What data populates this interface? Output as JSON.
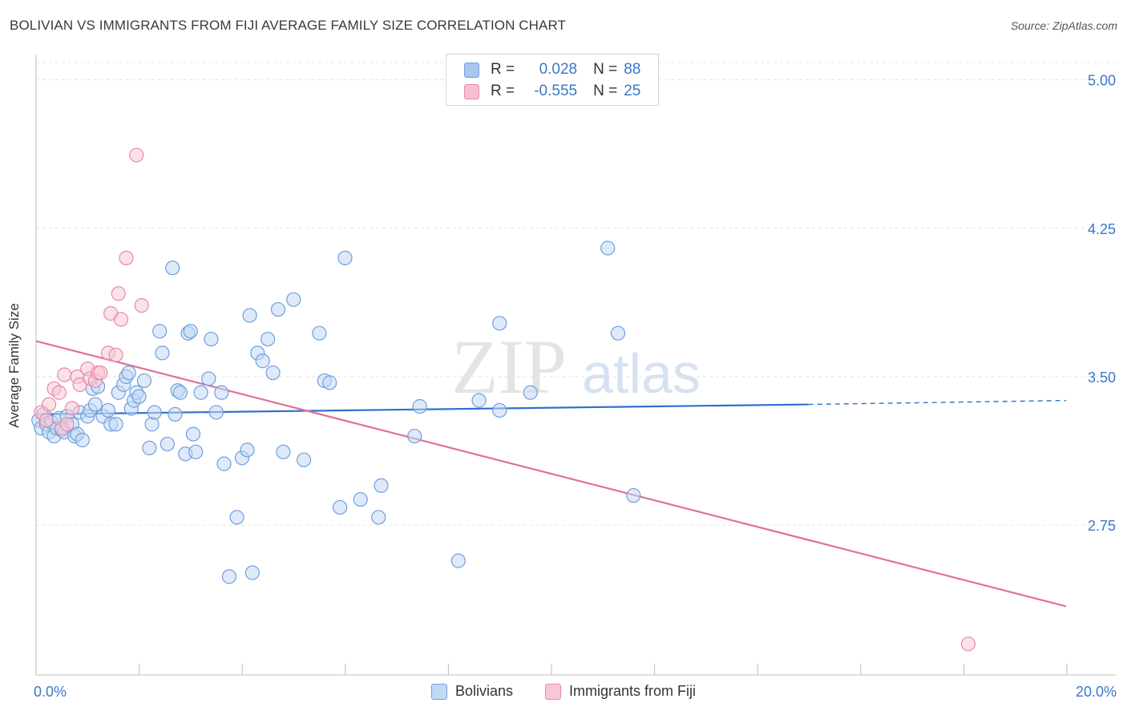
{
  "title": "BOLIVIAN VS IMMIGRANTS FROM FIJI AVERAGE FAMILY SIZE CORRELATION CHART",
  "source": "Source: ZipAtlas.com",
  "watermark": {
    "zip": "ZIP",
    "atlas": "atlas"
  },
  "legend_top": {
    "rows": [
      {
        "r_label": "R =",
        "r_value": "0.028",
        "n_label": "N =",
        "n_value": "88",
        "color": "#aac8ef",
        "border": "#6f9fdc"
      },
      {
        "r_label": "R =",
        "r_value": "-0.555",
        "n_label": "N =",
        "n_value": "25",
        "color": "#f6c0d0",
        "border": "#e88aa8"
      }
    ]
  },
  "chart_data": {
    "type": "scatter",
    "title": "BOLIVIAN VS IMMIGRANTS FROM FIJI AVERAGE FAMILY SIZE CORRELATION CHART",
    "xlabel": "",
    "ylabel": "Average Family Size",
    "xlim": [
      0,
      20
    ],
    "ylim": [
      2.05,
      5.12
    ],
    "x_tick_labels": [
      "0.0%",
      "20.0%"
    ],
    "y_ticks": [
      2.75,
      3.5,
      4.25,
      5.0
    ],
    "y_tick_labels": [
      "2.75",
      "3.50",
      "4.25",
      "5.00"
    ],
    "grid": true,
    "legend_position": "bottom",
    "series": [
      {
        "name": "Bolivians",
        "color": "#6f9fdc",
        "fill": "#c3d8f4",
        "trend": {
          "x0": 0.0,
          "y0": 3.31,
          "x1": 15.0,
          "y1": 3.36,
          "dash_to": 20.0,
          "dash_y": 3.38
        },
        "points": [
          [
            0.05,
            3.28
          ],
          [
            0.1,
            3.24
          ],
          [
            0.15,
            3.31
          ],
          [
            0.2,
            3.26
          ],
          [
            0.25,
            3.22
          ],
          [
            0.3,
            3.27
          ],
          [
            0.35,
            3.2
          ],
          [
            0.4,
            3.24
          ],
          [
            0.45,
            3.29
          ],
          [
            0.5,
            3.23
          ],
          [
            0.55,
            3.22
          ],
          [
            0.6,
            3.3
          ],
          [
            0.7,
            3.26
          ],
          [
            0.75,
            3.2
          ],
          [
            0.8,
            3.21
          ],
          [
            0.85,
            3.32
          ],
          [
            0.9,
            3.18
          ],
          [
            1.0,
            3.3
          ],
          [
            1.05,
            3.33
          ],
          [
            1.1,
            3.44
          ],
          [
            1.15,
            3.36
          ],
          [
            1.2,
            3.45
          ],
          [
            1.3,
            3.3
          ],
          [
            1.4,
            3.33
          ],
          [
            1.45,
            3.26
          ],
          [
            1.55,
            3.26
          ],
          [
            1.6,
            3.42
          ],
          [
            1.7,
            3.46
          ],
          [
            1.75,
            3.5
          ],
          [
            1.8,
            3.52
          ],
          [
            1.85,
            3.34
          ],
          [
            1.9,
            3.38
          ],
          [
            1.95,
            3.42
          ],
          [
            2.0,
            3.4
          ],
          [
            2.1,
            3.48
          ],
          [
            2.2,
            3.14
          ],
          [
            2.25,
            3.26
          ],
          [
            2.3,
            3.32
          ],
          [
            2.4,
            3.73
          ],
          [
            2.45,
            3.62
          ],
          [
            2.55,
            3.16
          ],
          [
            2.65,
            4.05
          ],
          [
            2.7,
            3.31
          ],
          [
            2.75,
            3.43
          ],
          [
            2.8,
            3.42
          ],
          [
            2.9,
            3.11
          ],
          [
            2.95,
            3.72
          ],
          [
            3.0,
            3.73
          ],
          [
            3.05,
            3.21
          ],
          [
            3.1,
            3.12
          ],
          [
            3.2,
            3.42
          ],
          [
            3.35,
            3.49
          ],
          [
            3.4,
            3.69
          ],
          [
            3.5,
            3.32
          ],
          [
            3.6,
            3.42
          ],
          [
            3.65,
            3.06
          ],
          [
            3.75,
            2.49
          ],
          [
            3.9,
            2.79
          ],
          [
            4.0,
            3.09
          ],
          [
            4.1,
            3.13
          ],
          [
            4.15,
            3.81
          ],
          [
            4.2,
            2.51
          ],
          [
            4.3,
            3.62
          ],
          [
            4.4,
            3.58
          ],
          [
            4.5,
            3.69
          ],
          [
            4.6,
            3.52
          ],
          [
            4.7,
            3.84
          ],
          [
            4.8,
            3.12
          ],
          [
            5.0,
            3.89
          ],
          [
            5.2,
            3.08
          ],
          [
            5.5,
            3.72
          ],
          [
            5.6,
            3.48
          ],
          [
            5.7,
            3.47
          ],
          [
            5.9,
            2.84
          ],
          [
            6.0,
            4.1
          ],
          [
            6.3,
            2.88
          ],
          [
            6.65,
            2.79
          ],
          [
            6.7,
            2.95
          ],
          [
            7.35,
            3.2
          ],
          [
            7.45,
            3.35
          ],
          [
            8.2,
            2.57
          ],
          [
            8.6,
            3.38
          ],
          [
            9.0,
            3.33
          ],
          [
            9.0,
            3.77
          ],
          [
            9.6,
            3.42
          ],
          [
            11.1,
            4.15
          ],
          [
            11.3,
            3.72
          ],
          [
            11.6,
            2.9
          ]
        ]
      },
      {
        "name": "Immigrants from Fiji",
        "color": "#e88aa8",
        "fill": "#f8c8d6",
        "trend": {
          "x0": 0.0,
          "y0": 3.68,
          "x1": 20.0,
          "y1": 2.34
        },
        "points": [
          [
            0.1,
            3.32
          ],
          [
            0.2,
            3.28
          ],
          [
            0.25,
            3.36
          ],
          [
            0.35,
            3.44
          ],
          [
            0.45,
            3.42
          ],
          [
            0.5,
            3.24
          ],
          [
            0.55,
            3.51
          ],
          [
            0.6,
            3.26
          ],
          [
            0.7,
            3.34
          ],
          [
            0.8,
            3.5
          ],
          [
            0.85,
            3.46
          ],
          [
            1.0,
            3.54
          ],
          [
            1.05,
            3.49
          ],
          [
            1.15,
            3.48
          ],
          [
            1.2,
            3.52
          ],
          [
            1.25,
            3.52
          ],
          [
            1.4,
            3.62
          ],
          [
            1.45,
            3.82
          ],
          [
            1.55,
            3.61
          ],
          [
            1.6,
            3.92
          ],
          [
            1.65,
            3.79
          ],
          [
            1.75,
            4.1
          ],
          [
            1.95,
            4.62
          ],
          [
            2.05,
            3.86
          ],
          [
            18.1,
            2.15
          ]
        ]
      }
    ]
  },
  "bottom_legend": [
    {
      "label": "Bolivians",
      "color": "#c3d8f4",
      "border": "#6f9fdc"
    },
    {
      "label": "Immigrants from Fiji",
      "color": "#f8c8d6",
      "border": "#e88aa8"
    }
  ]
}
